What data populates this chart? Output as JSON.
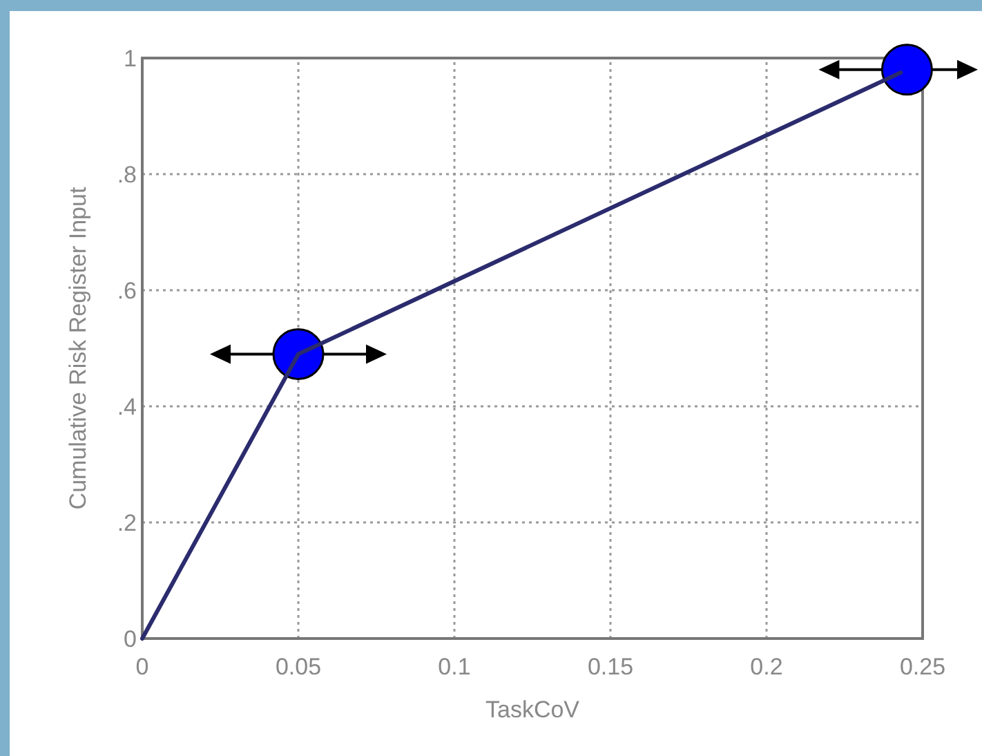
{
  "chart_data": {
    "type": "line",
    "xlabel": "TaskCoV",
    "ylabel": "Cumulative Risk Register Input",
    "xlim": [
      0,
      0.25
    ],
    "ylim": [
      0,
      1
    ],
    "xticks": [
      0,
      0.05,
      0.1,
      0.15,
      0.2,
      0.25
    ],
    "yticks": [
      0,
      {
        "value": 0.2,
        "label": ".2"
      },
      {
        "value": 0.4,
        "label": ".4"
      },
      {
        "value": 0.6,
        "label": ".6"
      },
      {
        "value": 0.8,
        "label": ".8"
      },
      1
    ],
    "grid": true,
    "series": [
      {
        "color": "#2b2b6e",
        "x": [
          0,
          0.05,
          0.243
        ],
        "values": [
          0,
          0.49,
          0.975
        ],
        "line_style": "solid",
        "marker": "none"
      },
      {
        "type": "scatter",
        "color": "#0000ff",
        "x": [
          0.05,
          0.245
        ],
        "values": [
          0.49,
          0.98
        ],
        "marker": "circle"
      }
    ]
  }
}
